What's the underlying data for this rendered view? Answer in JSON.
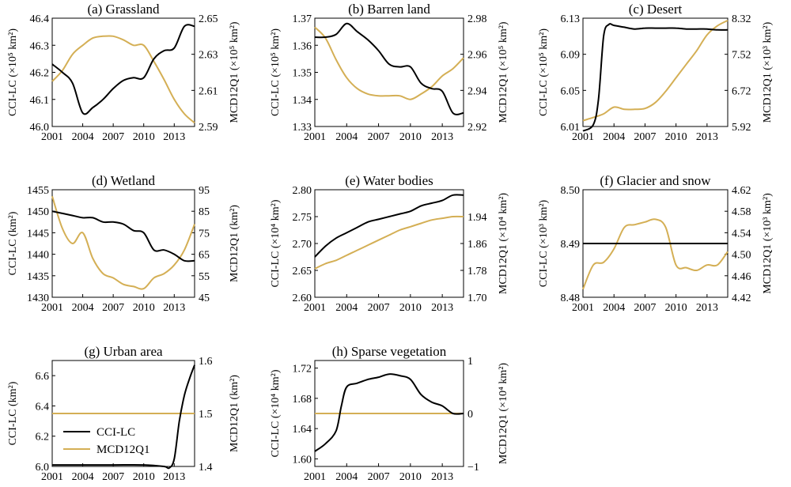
{
  "colors": {
    "cci": "#000000",
    "mcd": "#D4AF55"
  },
  "legend": {
    "cci": "CCI-LC",
    "mcd": "MCD12Q1"
  },
  "chart_data": [
    {
      "type": "line",
      "title": "(a) Grassland",
      "ylabel_left": "CCI-LC (×10⁵ km²)",
      "ylabel_right": "MCD12Q1 (×10⁵ km²)",
      "xlim": [
        2001,
        2015
      ],
      "xticks": [
        "2001",
        "2004",
        "2007",
        "2010",
        "2013"
      ],
      "ylim_left": [
        46.0,
        46.4
      ],
      "yticks_left": [
        "46.0",
        "46.1",
        "46.2",
        "46.3",
        "46.4"
      ],
      "ylim_right": [
        2.59,
        2.65
      ],
      "yticks_right": [
        "2.59",
        "2.61",
        "2.63",
        "2.65"
      ],
      "series": [
        {
          "name": "CCI-LC",
          "axis": "left",
          "x": [
            2001,
            2002,
            2003,
            2004,
            2005,
            2006,
            2007,
            2008,
            2009,
            2010,
            2011,
            2012,
            2013,
            2014,
            2015
          ],
          "y": [
            46.23,
            46.2,
            46.16,
            46.05,
            46.07,
            46.1,
            46.14,
            46.17,
            46.18,
            46.18,
            46.25,
            46.28,
            46.29,
            46.37,
            46.37
          ]
        },
        {
          "name": "MCD12Q1",
          "axis": "right",
          "x": [
            2001,
            2002,
            2003,
            2004,
            2005,
            2006,
            2007,
            2008,
            2009,
            2010,
            2011,
            2012,
            2013,
            2014,
            2015
          ],
          "y": [
            2.615,
            2.621,
            2.63,
            2.635,
            2.639,
            2.64,
            2.64,
            2.638,
            2.635,
            2.635,
            2.626,
            2.616,
            2.605,
            2.597,
            2.592
          ]
        }
      ]
    },
    {
      "type": "line",
      "title": "(b) Barren land",
      "ylabel_left": "CCI-LC (×10⁵ km²)",
      "ylabel_right": "MCD12Q1 (×10⁵ km²)",
      "xlim": [
        2001,
        2015
      ],
      "xticks": [
        "2001",
        "2004",
        "2007",
        "2010",
        "2013"
      ],
      "ylim_left": [
        1.33,
        1.37
      ],
      "yticks_left": [
        "1.33",
        "1.34",
        "1.35",
        "1.36",
        "1.37"
      ],
      "ylim_right": [
        2.92,
        2.98
      ],
      "yticks_right": [
        "2.92",
        "2.94",
        "2.96",
        "2.98"
      ],
      "series": [
        {
          "name": "CCI-LC",
          "axis": "left",
          "x": [
            2001,
            2002,
            2003,
            2004,
            2005,
            2006,
            2007,
            2008,
            2009,
            2010,
            2011,
            2012,
            2013,
            2014,
            2015
          ],
          "y": [
            1.363,
            1.363,
            1.364,
            1.368,
            1.365,
            1.362,
            1.358,
            1.353,
            1.352,
            1.352,
            1.346,
            1.344,
            1.343,
            1.335,
            1.335
          ]
        },
        {
          "name": "MCD12Q1",
          "axis": "right",
          "x": [
            2001,
            2002,
            2003,
            2004,
            2005,
            2006,
            2007,
            2008,
            2009,
            2010,
            2011,
            2012,
            2013,
            2014,
            2015
          ],
          "y": [
            2.975,
            2.969,
            2.957,
            2.947,
            2.941,
            2.938,
            2.937,
            2.937,
            2.937,
            2.935,
            2.938,
            2.942,
            2.948,
            2.952,
            2.958
          ]
        }
      ]
    },
    {
      "type": "line",
      "title": "(c) Desert",
      "ylabel_left": "CCI-LC (×10⁵ km²)",
      "ylabel_right": "MCD12Q1 (×10³ km²)",
      "xlim": [
        2001,
        2015
      ],
      "xticks": [
        "2001",
        "2004",
        "2007",
        "2010",
        "2013"
      ],
      "ylim_left": [
        6.01,
        6.13
      ],
      "yticks_left": [
        "6.01",
        "6.05",
        "6.09",
        "6.13"
      ],
      "ylim_right": [
        5.92,
        8.32
      ],
      "yticks_right": [
        "5.92",
        "6.72",
        "7.52",
        "8.32"
      ],
      "series": [
        {
          "name": "CCI-LC",
          "axis": "left",
          "x": [
            2001,
            2002,
            2002.5,
            2003,
            2003.5,
            2004,
            2005,
            2006,
            2007,
            2008,
            2009,
            2010,
            2011,
            2012,
            2013,
            2014,
            2015
          ],
          "y": [
            6.005,
            6.012,
            6.04,
            6.11,
            6.123,
            6.122,
            6.12,
            6.118,
            6.119,
            6.119,
            6.119,
            6.119,
            6.118,
            6.118,
            6.118,
            6.117,
            6.117
          ]
        },
        {
          "name": "MCD12Q1",
          "axis": "right",
          "x": [
            2001,
            2002,
            2003,
            2004,
            2005,
            2006,
            2007,
            2008,
            2009,
            2010,
            2011,
            2012,
            2013,
            2014,
            2015
          ],
          "y": [
            6.05,
            6.12,
            6.2,
            6.35,
            6.3,
            6.3,
            6.32,
            6.45,
            6.7,
            7.0,
            7.3,
            7.6,
            7.95,
            8.15,
            8.27
          ]
        }
      ]
    },
    {
      "type": "line",
      "title": "(d) Wetland",
      "ylabel_left": "CCI-LC (km²)",
      "ylabel_right": "MCD12Q1 (km²)",
      "xlim": [
        2001,
        2015
      ],
      "xticks": [
        "2001",
        "2004",
        "2007",
        "2010",
        "2013"
      ],
      "ylim_left": [
        1430,
        1455
      ],
      "yticks_left": [
        "1430",
        "1435",
        "1440",
        "1445",
        "1450",
        "1455"
      ],
      "ylim_right": [
        45,
        95
      ],
      "yticks_right": [
        "45",
        "55",
        "65",
        "75",
        "85",
        "95"
      ],
      "series": [
        {
          "name": "CCI-LC",
          "axis": "left",
          "x": [
            2001,
            2002,
            2003,
            2004,
            2005,
            2006,
            2007,
            2008,
            2009,
            2010,
            2011,
            2012,
            2013,
            2014,
            2015
          ],
          "y": [
            1450,
            1449.5,
            1449,
            1448.5,
            1448.5,
            1447.5,
            1447.5,
            1447,
            1445.5,
            1445,
            1441,
            1441,
            1440,
            1438.5,
            1438.5
          ]
        },
        {
          "name": "MCD12Q1",
          "axis": "right",
          "x": [
            2001,
            2002,
            2003,
            2004,
            2005,
            2006,
            2007,
            2008,
            2009,
            2010,
            2011,
            2012,
            2013,
            2014,
            2015
          ],
          "y": [
            92,
            77,
            70,
            75,
            63,
            56,
            54,
            51,
            50,
            49,
            54,
            56,
            60,
            67,
            79
          ]
        }
      ]
    },
    {
      "type": "line",
      "title": "(e) Water bodies",
      "ylabel_left": "CCI-LC (×10⁴ km²)",
      "ylabel_right": "MCD12Q1 (×10⁴ km²)",
      "xlim": [
        2001,
        2015
      ],
      "xticks": [
        "2001",
        "2004",
        "2007",
        "2010",
        "2013"
      ],
      "ylim_left": [
        2.6,
        2.8
      ],
      "yticks_left": [
        "2.60",
        "2.65",
        "2.70",
        "2.75",
        "2.80"
      ],
      "ylim_right": [
        1.7,
        2.02
      ],
      "yticks_right": [
        "1.70",
        "1.78",
        "1.86",
        "1.94"
      ],
      "series": [
        {
          "name": "CCI-LC",
          "axis": "left",
          "x": [
            2001,
            2002,
            2003,
            2004,
            2005,
            2006,
            2007,
            2008,
            2009,
            2010,
            2011,
            2012,
            2013,
            2014,
            2015
          ],
          "y": [
            2.675,
            2.695,
            2.71,
            2.72,
            2.73,
            2.74,
            2.745,
            2.75,
            2.755,
            2.76,
            2.77,
            2.775,
            2.78,
            2.79,
            2.79
          ]
        },
        {
          "name": "MCD12Q1",
          "axis": "right",
          "x": [
            2001,
            2002,
            2003,
            2004,
            2005,
            2006,
            2007,
            2008,
            2009,
            2010,
            2011,
            2012,
            2013,
            2014,
            2015
          ],
          "y": [
            1.785,
            1.8,
            1.81,
            1.825,
            1.84,
            1.855,
            1.87,
            1.885,
            1.9,
            1.91,
            1.92,
            1.93,
            1.935,
            1.94,
            1.94
          ]
        }
      ]
    },
    {
      "type": "line",
      "title": "(f) Glacier and snow",
      "ylabel_left": "CCI-LC (×10³ km²)",
      "ylabel_right": "MCD12Q1 (×10³ km²)",
      "xlim": [
        2001,
        2015
      ],
      "xticks": [
        "2001",
        "2004",
        "2007",
        "2010",
        "2013"
      ],
      "ylim_left": [
        8.48,
        8.5
      ],
      "yticks_left": [
        "8.48",
        "8.49",
        "8.50"
      ],
      "ylim_right": [
        4.42,
        4.62
      ],
      "yticks_right": [
        "4.42",
        "4.46",
        "4.50",
        "4.54",
        "4.58",
        "4.62"
      ],
      "series": [
        {
          "name": "CCI-LC",
          "axis": "left",
          "x": [
            2001,
            2015
          ],
          "y": [
            8.49,
            8.49
          ]
        },
        {
          "name": "MCD12Q1",
          "axis": "right",
          "x": [
            2001,
            2002,
            2003,
            2004,
            2005,
            2006,
            2007,
            2008,
            2009,
            2010,
            2011,
            2012,
            2013,
            2014,
            2015
          ],
          "y": [
            4.435,
            4.48,
            4.485,
            4.51,
            4.55,
            4.555,
            4.56,
            4.565,
            4.55,
            4.48,
            4.475,
            4.47,
            4.48,
            4.48,
            4.505
          ]
        }
      ]
    },
    {
      "type": "line",
      "title": "(g) Urban area",
      "ylabel_left": "CCI-LC (km²)",
      "ylabel_right": "MCD12Q1 (km²)",
      "xlim": [
        2001,
        2015
      ],
      "xticks": [
        "2001",
        "2004",
        "2007",
        "2010",
        "2013"
      ],
      "ylim_left": [
        6.0,
        6.7
      ],
      "yticks_left": [
        "6.0",
        "6.2",
        "6.4",
        "6.6"
      ],
      "ylim_right": [
        1.4,
        1.6
      ],
      "yticks_right": [
        "1.4",
        "1.5",
        "1.6"
      ],
      "series": [
        {
          "name": "CCI-LC",
          "axis": "left",
          "x": [
            2001,
            2004,
            2007,
            2010,
            2012,
            2012.5,
            2013,
            2013.5,
            2014,
            2014.5,
            2015
          ],
          "y": [
            6.01,
            6.01,
            6.01,
            6.01,
            6.0,
            5.99,
            6.05,
            6.3,
            6.47,
            6.58,
            6.67
          ]
        },
        {
          "name": "MCD12Q1",
          "axis": "right",
          "x": [
            2001,
            2015
          ],
          "y": [
            1.5,
            1.5
          ]
        }
      ]
    },
    {
      "type": "line",
      "title": "(h) Sparse vegetation",
      "ylabel_left": "CCI-LC (×10⁴ km²)",
      "ylabel_right": "MCD12Q1 (×10⁴ km²)",
      "xlim": [
        2001,
        2015
      ],
      "xticks": [
        "2001",
        "2004",
        "2007",
        "2010",
        "2013"
      ],
      "ylim_left": [
        1.59,
        1.73
      ],
      "yticks_left": [
        "1.60",
        "1.64",
        "1.68",
        "1.72"
      ],
      "ylim_right": [
        -1,
        1
      ],
      "yticks_right": [
        "−1",
        "0",
        "1"
      ],
      "series": [
        {
          "name": "CCI-LC",
          "axis": "left",
          "x": [
            2001,
            2002,
            2003,
            2003.5,
            2004,
            2005,
            2006,
            2007,
            2008,
            2009,
            2010,
            2011,
            2012,
            2013,
            2014,
            2015
          ],
          "y": [
            1.61,
            1.62,
            1.637,
            1.67,
            1.695,
            1.7,
            1.705,
            1.708,
            1.712,
            1.71,
            1.705,
            1.685,
            1.675,
            1.67,
            1.66,
            1.66
          ]
        },
        {
          "name": "MCD12Q1",
          "axis": "right",
          "x": [
            2001,
            2015
          ],
          "y": [
            0,
            0
          ]
        }
      ]
    }
  ]
}
